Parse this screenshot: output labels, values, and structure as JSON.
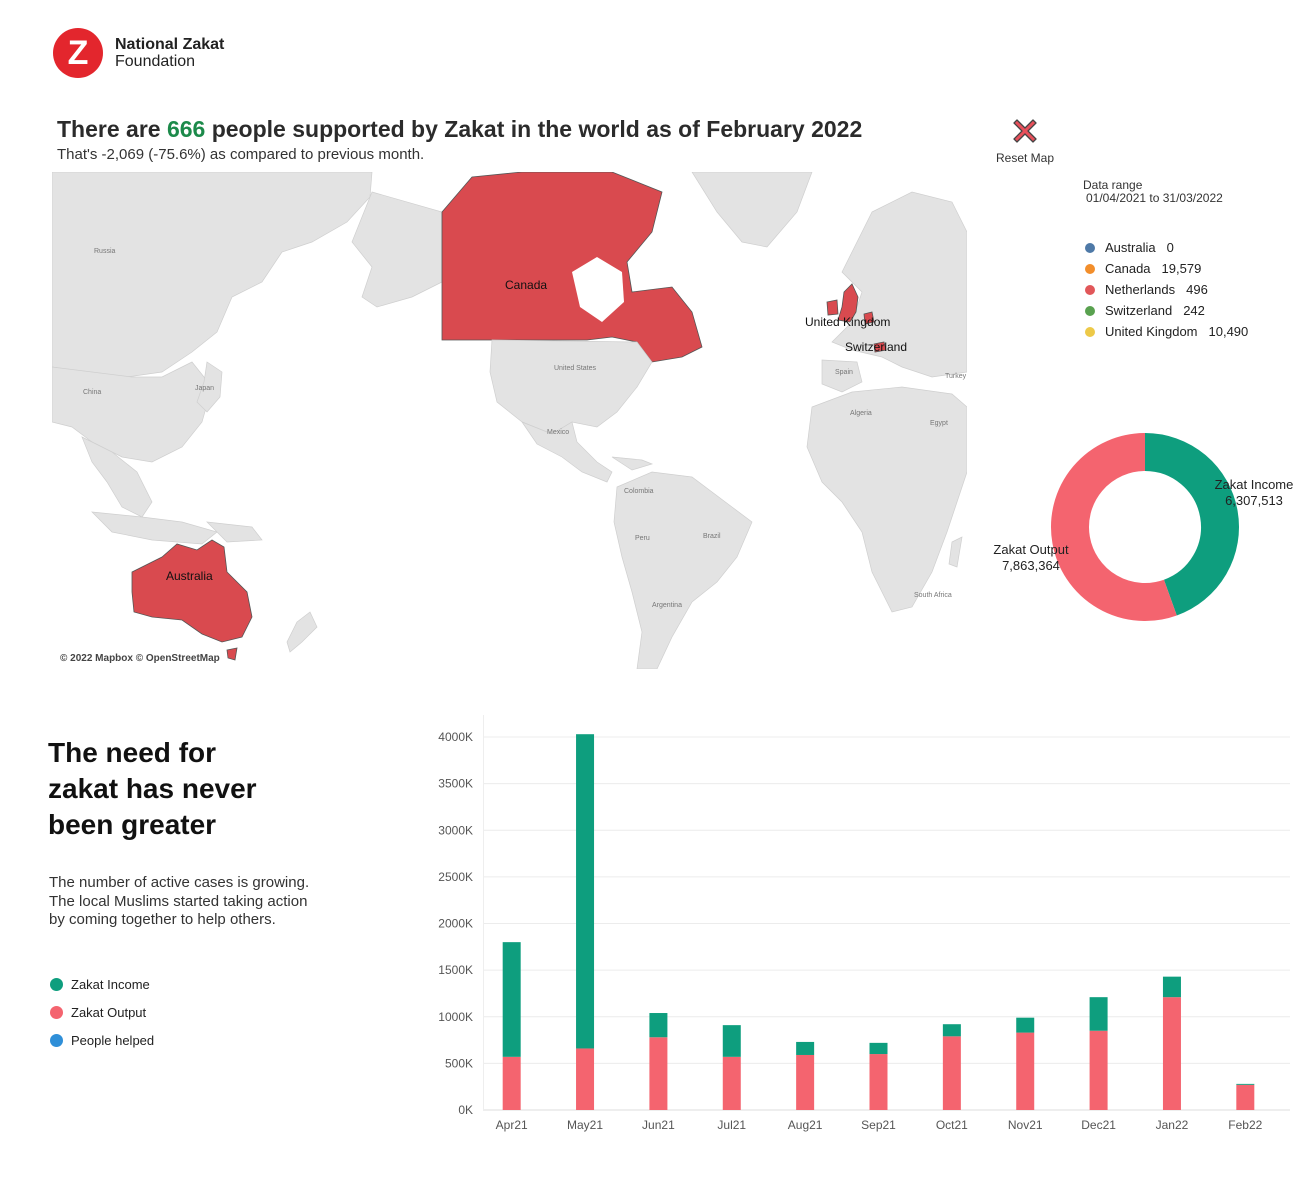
{
  "logo": {
    "mark": "Z",
    "name": "National Zakat",
    "sub": "Foundation"
  },
  "headline": {
    "pre": "There are ",
    "count": "666",
    "post": " people supported by Zakat in the world as of February 2022",
    "subline": "That's -2,069 (-75.6%)  as compared to previous month.",
    "count_color": "#1c8a4a"
  },
  "reset_map": {
    "label": "Reset Map",
    "icon": "close-x-icon"
  },
  "map": {
    "credit": "© 2022 Mapbox © OpenStreetMap",
    "highlighted": [
      "Canada",
      "United Kingdom",
      "Switzerland",
      "Australia"
    ],
    "labels": {
      "canada": "Canada",
      "uk": "United Kingdom",
      "switzerland": "Switzerland",
      "australia": "Australia",
      "russia": "Russia",
      "china": "China",
      "japan": "Japan",
      "us": "United States",
      "mexico": "Mexico",
      "colombia": "Colombia",
      "peru": "Peru",
      "brazil": "Brazil",
      "argentina": "Argentina",
      "spain": "Spain",
      "algeria": "Algeria",
      "egypt": "Egypt",
      "turkey": "Turkey",
      "south_africa": "South Africa"
    },
    "highlight_color": "#d94a4f",
    "land_color": "#e3e3e3"
  },
  "data_range": {
    "title": "Data range",
    "value": "01/04/2021 to 31/03/2022"
  },
  "country_legend": [
    {
      "name": "Australia",
      "value": "0",
      "color": "#4e79a7"
    },
    {
      "name": "Canada",
      "value": "19,579",
      "color": "#f28e2b"
    },
    {
      "name": "Netherlands",
      "value": "496",
      "color": "#e15759"
    },
    {
      "name": "Switzerland",
      "value": "242",
      "color": "#59a14f"
    },
    {
      "name": "United Kingdom",
      "value": "10,490",
      "color": "#edc948"
    }
  ],
  "donut": {
    "income_label": "Zakat Income",
    "income_value": "6,307,513",
    "output_label": "Zakat Output",
    "output_value": "7,863,364"
  },
  "need": {
    "title_lines": [
      "The need for",
      "zakat has never",
      "been greater"
    ],
    "text_lines": [
      "The number of active cases is growing.",
      "The local Muslims started taking action",
      "by coming together to help others."
    ]
  },
  "series_legend": [
    {
      "name": "Zakat Income",
      "color": "#0e9e7e"
    },
    {
      "name": "Zakat Output",
      "color": "#f4646f"
    },
    {
      "name": "People helped",
      "color": "#2f8fd8"
    }
  ],
  "chart_data": [
    {
      "type": "pie",
      "categories": [
        "Zakat Income",
        "Zakat Output"
      ],
      "values": [
        6307513,
        7863364
      ],
      "colors": [
        "#0e9e7e",
        "#f4646f"
      ],
      "donut": true
    },
    {
      "type": "bar",
      "stacked": true,
      "categories": [
        "Apr21",
        "May21",
        "Jun21",
        "Jul21",
        "Aug21",
        "Sep21",
        "Oct21",
        "Nov21",
        "Dec21",
        "Jan22",
        "Feb22"
      ],
      "series": [
        {
          "name": "Zakat Output",
          "color": "#f4646f",
          "values": [
            570,
            660,
            780,
            570,
            590,
            600,
            790,
            830,
            850,
            1210,
            270
          ]
        },
        {
          "name": "Zakat Income",
          "color": "#0e9e7e",
          "values": [
            1230,
            3370,
            260,
            340,
            140,
            120,
            130,
            160,
            360,
            220,
            10
          ]
        }
      ],
      "yticks": [
        "0K",
        "500K",
        "1000K",
        "1500K",
        "2000K",
        "2500K",
        "3000K",
        "3500K",
        "4000K"
      ],
      "ylim": [
        0,
        4000
      ],
      "grid": true
    }
  ]
}
